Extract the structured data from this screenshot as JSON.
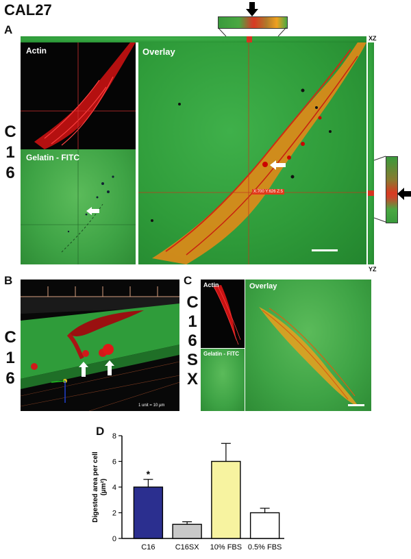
{
  "figure": {
    "title": "CAL27",
    "panels": {
      "A": {
        "letter": "A",
        "actin_label": "Actin",
        "gelatin_label": "Gelatin - FITC",
        "overlay_label": "Overlay",
        "xz_label": "XZ",
        "yz_label": "YZ",
        "side_letters": [
          "C",
          "1",
          "6"
        ],
        "crosshair_text": "X:700 Y:626 Z:5"
      },
      "B": {
        "letter": "B",
        "side_letters": [
          "C",
          "1",
          "6"
        ],
        "scale_text": "1 unit = 10 µm"
      },
      "C": {
        "letter": "C",
        "side_letters": [
          "C",
          "1",
          "6",
          "S",
          "X"
        ],
        "actin_label": "Actin",
        "gelatin_label": "Gelatin - FITC",
        "overlay_label": "Overlay"
      },
      "D": {
        "letter": "D"
      }
    },
    "colors": {
      "c16_bar": "#2b2f8f",
      "c16sx_bar": "#c8c8c8",
      "fbs10_bar": "#f7f3a0",
      "fbs05_bar": "#ffffff",
      "actin_red": "#e01818",
      "fitc_green": "#33a43f"
    }
  },
  "chart_data": {
    "type": "bar",
    "categories": [
      "C16",
      "C16SX",
      "10% FBS",
      "0.5% FBS"
    ],
    "values": [
      4.0,
      1.1,
      6.0,
      2.0
    ],
    "errors": [
      0.6,
      0.2,
      1.4,
      0.35
    ],
    "significance": [
      "*",
      "",
      "",
      ""
    ],
    "ylabel_line1": "Digested area per cell",
    "ylabel_line2": "(µm²)",
    "ylim": [
      0,
      8
    ],
    "yticks": [
      "0",
      "2",
      "4",
      "6",
      "8"
    ],
    "grid": false
  }
}
